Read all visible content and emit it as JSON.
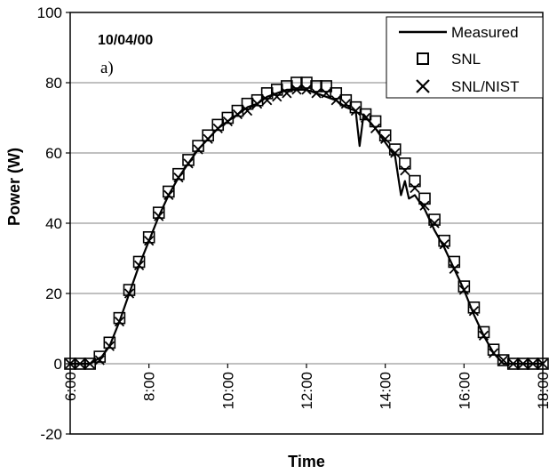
{
  "chart_data": {
    "type": "line",
    "annotations": {
      "date": "10/04/00",
      "panel": "a)"
    },
    "xlabel": "Time",
    "ylabel": "Power (W)",
    "xlim": [
      6,
      18
    ],
    "ylim": [
      -20,
      100
    ],
    "x_ticks": [
      "6:00",
      "8:00",
      "10:00",
      "12:00",
      "14:00",
      "16:00",
      "18:00"
    ],
    "x_tick_values": [
      6,
      8,
      10,
      12,
      14,
      16,
      18
    ],
    "y_ticks": [
      "-20",
      "0",
      "20",
      "40",
      "60",
      "80",
      "100"
    ],
    "y_tick_values": [
      -20,
      0,
      20,
      40,
      60,
      80,
      100
    ],
    "grid": "horizontal",
    "legend_position": "top-right",
    "colors": {
      "series": "#000000",
      "grid": "#808080"
    },
    "series": [
      {
        "name": "Measured",
        "style": "line",
        "x": [
          6.0,
          6.5,
          6.8,
          7.0,
          7.25,
          7.5,
          7.75,
          8.0,
          8.25,
          8.5,
          8.75,
          9.0,
          9.25,
          9.5,
          9.75,
          10.0,
          10.25,
          10.5,
          10.75,
          11.0,
          11.25,
          11.5,
          11.75,
          12.0,
          12.25,
          12.5,
          12.75,
          13.0,
          13.25,
          13.35,
          13.45,
          13.75,
          14.0,
          14.25,
          14.4,
          14.5,
          14.6,
          14.75,
          15.0,
          15.25,
          15.5,
          15.75,
          16.0,
          16.25,
          16.5,
          16.75,
          17.0,
          17.25,
          17.5,
          17.75,
          18.0
        ],
        "y": [
          0,
          0,
          2,
          5,
          12,
          20,
          28,
          35,
          42,
          48,
          53,
          57,
          61,
          64,
          67,
          69,
          71,
          73,
          74,
          76,
          77,
          78,
          78,
          78,
          77,
          76,
          75,
          73,
          72,
          62,
          71,
          67,
          63,
          59,
          48,
          52,
          47,
          48,
          44,
          38,
          33,
          27,
          21,
          14,
          8,
          3,
          0,
          0,
          0,
          0,
          0
        ]
      },
      {
        "name": "SNL",
        "style": "square-marker",
        "x": [
          6.0,
          6.25,
          6.5,
          6.75,
          7.0,
          7.25,
          7.5,
          7.75,
          8.0,
          8.25,
          8.5,
          8.75,
          9.0,
          9.25,
          9.5,
          9.75,
          10.0,
          10.25,
          10.5,
          10.75,
          11.0,
          11.25,
          11.5,
          11.75,
          12.0,
          12.25,
          12.5,
          12.75,
          13.0,
          13.25,
          13.5,
          13.75,
          14.0,
          14.25,
          14.5,
          14.75,
          15.0,
          15.25,
          15.5,
          15.75,
          16.0,
          16.25,
          16.5,
          16.75,
          17.0,
          17.25,
          17.5,
          17.75,
          18.0
        ],
        "y": [
          0,
          0,
          0,
          2,
          6,
          13,
          21,
          29,
          36,
          43,
          49,
          54,
          58,
          62,
          65,
          68,
          70,
          72,
          74,
          75,
          77,
          78,
          79,
          80,
          80,
          79,
          79,
          77,
          75,
          73,
          71,
          69,
          65,
          61,
          57,
          52,
          47,
          41,
          35,
          29,
          22,
          16,
          9,
          4,
          1,
          0,
          0,
          0,
          0
        ]
      },
      {
        "name": "SNL/NIST",
        "style": "x-marker",
        "x": [
          6.0,
          6.25,
          6.5,
          6.75,
          7.0,
          7.25,
          7.5,
          7.75,
          8.0,
          8.25,
          8.5,
          8.75,
          9.0,
          9.25,
          9.5,
          9.75,
          10.0,
          10.25,
          10.5,
          10.75,
          11.0,
          11.25,
          11.5,
          11.75,
          12.0,
          12.25,
          12.5,
          12.75,
          13.0,
          13.25,
          13.5,
          13.75,
          14.0,
          14.25,
          14.5,
          14.75,
          15.0,
          15.25,
          15.5,
          15.75,
          16.0,
          16.25,
          16.5,
          16.75,
          17.0,
          17.25,
          17.5,
          17.75,
          18.0
        ],
        "y": [
          0,
          0,
          0,
          1,
          5,
          12,
          20,
          28,
          35,
          42,
          48,
          53,
          57,
          61,
          64,
          67,
          69,
          71,
          72,
          74,
          75,
          76,
          77,
          78,
          78,
          77,
          77,
          75,
          74,
          72,
          70,
          67,
          64,
          60,
          55,
          50,
          45,
          40,
          34,
          27,
          21,
          15,
          8,
          3,
          1,
          0,
          0,
          0,
          0
        ]
      }
    ]
  }
}
